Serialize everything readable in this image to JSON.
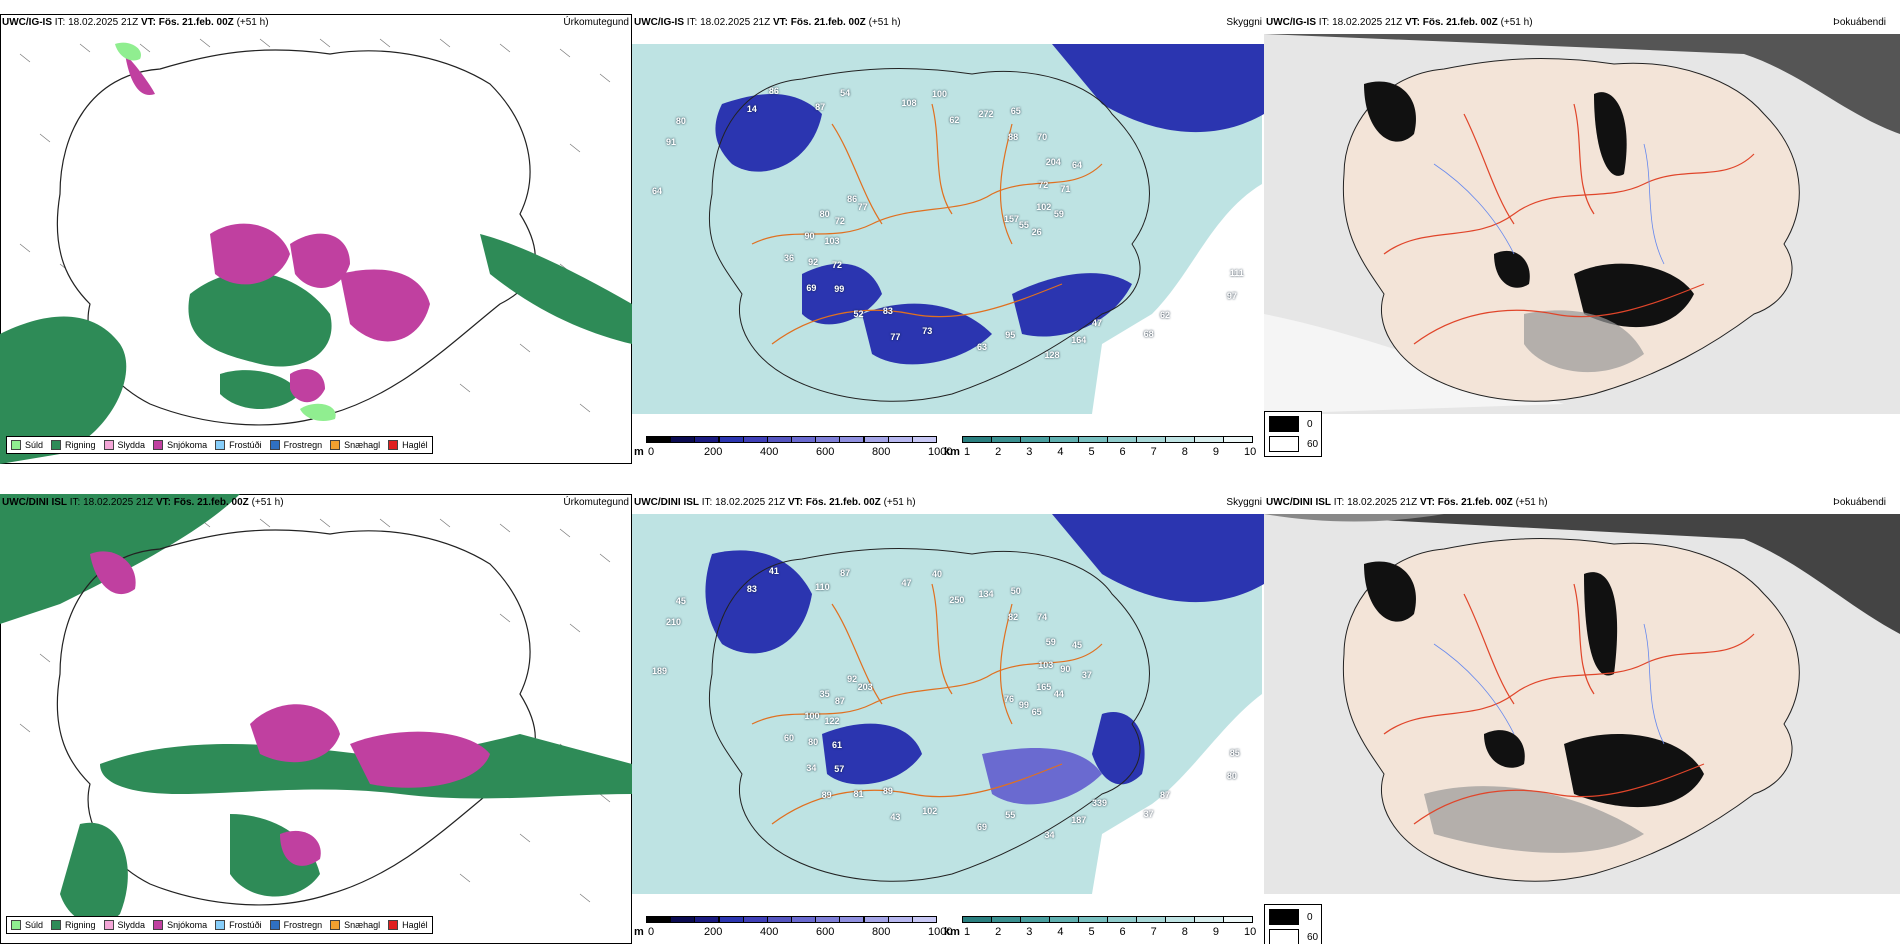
{
  "rows": [
    {
      "model": "UWC/IG-IS",
      "it_label": "IT:",
      "it_value": "18.02.2025 21Z",
      "vt_label": "VT:",
      "vt_value": "Fös. 21.feb. 00Z",
      "lead": "(+51 h)",
      "titles": [
        "Úrkomutegund",
        "Skyggni",
        "Þokuábendi"
      ],
      "cloud_numbers": [
        "157",
        "72",
        "62",
        "47",
        "64",
        "72",
        "83",
        "87",
        "111",
        "103",
        "88",
        "95",
        "91",
        "102",
        "99",
        "108",
        "62",
        "72",
        "204",
        "73",
        "14",
        "55",
        "92",
        "272",
        "164",
        "77",
        "71",
        "52",
        "54",
        "97",
        "90",
        "70",
        "63",
        "80",
        "59",
        "69",
        "100",
        "68",
        "80",
        "64",
        "77",
        "86",
        "26",
        "36",
        "65",
        "128",
        "86"
      ]
    },
    {
      "model": "UWC/DINI ISL",
      "it_label": "IT:",
      "it_value": "18.02.2025 21Z",
      "vt_label": "VT:",
      "vt_value": "Fös. 21.feb. 00Z",
      "lead": "(+51 h)",
      "titles": [
        "Úrkomutegund",
        "Skyggni",
        "Þokuábendi"
      ],
      "cloud_numbers": [
        "76",
        "61",
        "250",
        "339",
        "189",
        "103",
        "89",
        "110",
        "85",
        "122",
        "82",
        "55",
        "210",
        "165",
        "57",
        "47",
        "87",
        "87",
        "59",
        "102",
        "83",
        "99",
        "80",
        "134",
        "187",
        "203",
        "90",
        "81",
        "87",
        "80",
        "100",
        "74",
        "69",
        "45",
        "44",
        "34",
        "40",
        "37",
        "35",
        "45",
        "43",
        "41",
        "65",
        "60",
        "50",
        "34",
        "92",
        "37",
        "89"
      ]
    }
  ],
  "precip_legend": [
    {
      "label": "Súld",
      "color": "#90ee90"
    },
    {
      "label": "Rigning",
      "color": "#2e8b57"
    },
    {
      "label": "Slydda",
      "color": "#f4a6d7"
    },
    {
      "label": "Snjókoma",
      "color": "#c040a0"
    },
    {
      "label": "Frostúði",
      "color": "#87cefa"
    },
    {
      "label": "Frostregn",
      "color": "#3070c0"
    },
    {
      "label": "Snæhagl",
      "color": "#f0a030"
    },
    {
      "label": "Haglél",
      "color": "#e02020"
    }
  ],
  "cloudbase_bar": {
    "unit": "m",
    "ticks": [
      "0",
      "200",
      "400",
      "600",
      "800",
      "1000"
    ]
  },
  "visibility_bar": {
    "unit": "km",
    "ticks": [
      "1",
      "2",
      "3",
      "4",
      "5",
      "6",
      "7",
      "8",
      "9",
      "10"
    ]
  },
  "fog_legend": [
    "0",
    "60"
  ],
  "colors": {
    "rain": "#2e8b57",
    "drizzle": "#90ee90",
    "snow": "#c040a0",
    "sleet": "#f4a6d7",
    "cloud": "#2020a0",
    "vis": "#3aa0a0",
    "road": "#e07020",
    "land": "#f3e4d8",
    "fogdark": "#222"
  }
}
